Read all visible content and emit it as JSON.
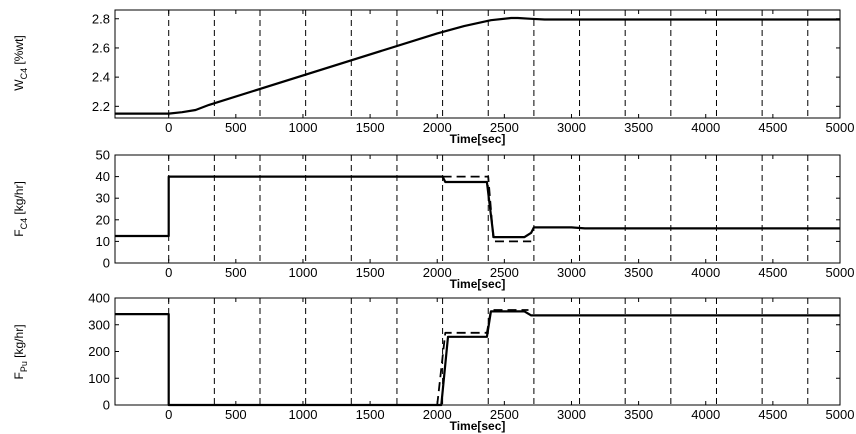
{
  "chart_data": [
    {
      "type": "line",
      "ylabel_main": "W",
      "ylabel_sub": "C4",
      "ylabel_unit": " [%wt]",
      "xlabel": "Time[sec]",
      "xlim": [
        -400,
        5000
      ],
      "ylim": [
        2.12,
        2.86
      ],
      "xticks": [
        0,
        500,
        1000,
        1500,
        2000,
        2500,
        3000,
        3500,
        4000,
        4500,
        5000
      ],
      "yticks": [
        2.2,
        2.4,
        2.6,
        2.8
      ],
      "vlines": [
        0,
        340,
        680,
        1020,
        1360,
        1700,
        2040,
        2380,
        2720,
        3060,
        3400,
        3740,
        4080,
        4420,
        4760
      ],
      "series": [
        {
          "style": "solid",
          "x": [
            -400,
            0,
            100,
            200,
            300,
            2000,
            2200,
            2400,
            2550,
            2600,
            2700,
            2800,
            2900,
            5000
          ],
          "y": [
            2.15,
            2.15,
            2.16,
            2.175,
            2.21,
            2.7,
            2.75,
            2.79,
            2.805,
            2.805,
            2.8,
            2.795,
            2.795,
            2.795
          ]
        }
      ]
    },
    {
      "type": "line",
      "ylabel_main": "F",
      "ylabel_sub": "C4",
      "ylabel_unit": " [kg/hr]",
      "xlabel": "Time[sec]",
      "xlim": [
        -400,
        5000
      ],
      "ylim": [
        0,
        50
      ],
      "xticks": [
        0,
        500,
        1000,
        1500,
        2000,
        2500,
        3000,
        3500,
        4000,
        4500,
        5000
      ],
      "yticks": [
        0,
        10,
        20,
        30,
        40,
        50
      ],
      "vlines": [
        0,
        340,
        680,
        1020,
        1360,
        1700,
        2040,
        2380,
        2720,
        3060,
        3400,
        3740,
        4080,
        4420,
        4760
      ],
      "series": [
        {
          "style": "dashed",
          "x": [
            2040,
            2370,
            2380,
            2420,
            2700
          ],
          "y": [
            40,
            40,
            40,
            10,
            10
          ]
        },
        {
          "style": "solid",
          "x": [
            -400,
            0,
            0,
            2040,
            2060,
            2370,
            2420,
            2650,
            2700,
            2720,
            3000,
            3100,
            5000
          ],
          "y": [
            12.5,
            12.5,
            40,
            40,
            37.5,
            37.5,
            12,
            12,
            14,
            16.5,
            16.5,
            16,
            16
          ]
        }
      ]
    },
    {
      "type": "line",
      "ylabel_main": "F",
      "ylabel_sub": "Pu",
      "ylabel_unit": " [kg/hr]",
      "xlabel": "Time[sec]",
      "xlim": [
        -400,
        5000
      ],
      "ylim": [
        0,
        400
      ],
      "xticks": [
        0,
        500,
        1000,
        1500,
        2000,
        2500,
        3000,
        3500,
        4000,
        4500,
        5000
      ],
      "yticks": [
        0,
        100,
        200,
        300,
        400
      ],
      "vlines": [
        0,
        340,
        680,
        1020,
        1360,
        1700,
        2040,
        2380,
        2720,
        3060,
        3400,
        3740,
        4080,
        4420,
        4760
      ],
      "series": [
        {
          "style": "dashed",
          "x": [
            2000,
            2060,
            2370,
            2400,
            2680
          ],
          "y": [
            0,
            270,
            270,
            355,
            355
          ]
        },
        {
          "style": "solid",
          "x": [
            -400,
            0,
            0,
            2030,
            2080,
            2370,
            2400,
            2650,
            2700,
            5000
          ],
          "y": [
            340,
            340,
            0,
            0,
            255,
            255,
            350,
            350,
            335,
            335
          ]
        }
      ]
    }
  ]
}
